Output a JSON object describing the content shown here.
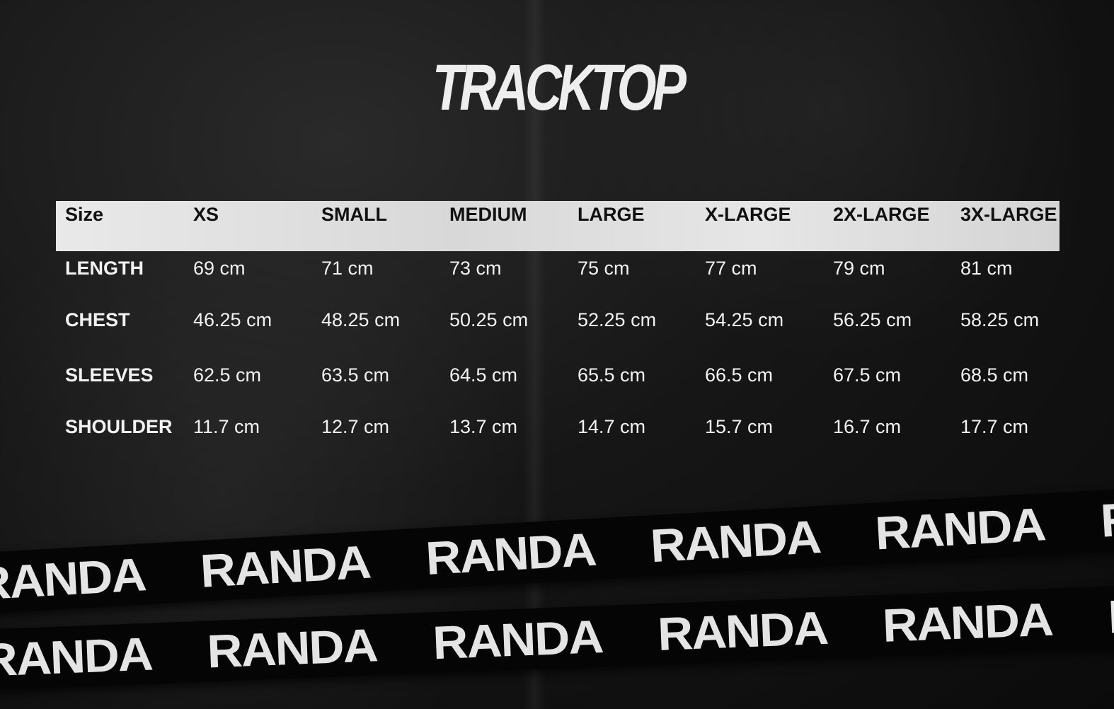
{
  "title": "TRACKTOP",
  "table": {
    "header": [
      "Size",
      "XS",
      "SMALL",
      "MEDIUM",
      "LARGE",
      "X-LARGE",
      "2X-LARGE",
      "3X-LARGE"
    ],
    "rows": [
      {
        "label": "LENGTH",
        "values": [
          "69 cm",
          "71 cm",
          "73 cm",
          "75 cm",
          "77 cm",
          "79 cm",
          "81 cm"
        ]
      },
      {
        "label": "CHEST",
        "values": [
          "46.25 cm",
          "48.25 cm",
          "50.25 cm",
          "52.25 cm",
          "54.25 cm",
          "56.25 cm",
          "58.25 cm"
        ]
      },
      {
        "label": "SLEEVES",
        "values": [
          "62.5 cm",
          "63.5 cm",
          "64.5 cm",
          "65.5 cm",
          "66.5 cm",
          "67.5 cm",
          "68.5 cm"
        ]
      },
      {
        "label": "SHOULDER",
        "values": [
          "11.7 cm",
          "12.7 cm",
          "13.7 cm",
          "14.7 cm",
          "15.7 cm",
          "16.7 cm",
          "17.7 cm"
        ]
      }
    ]
  },
  "brand": "RANDA"
}
